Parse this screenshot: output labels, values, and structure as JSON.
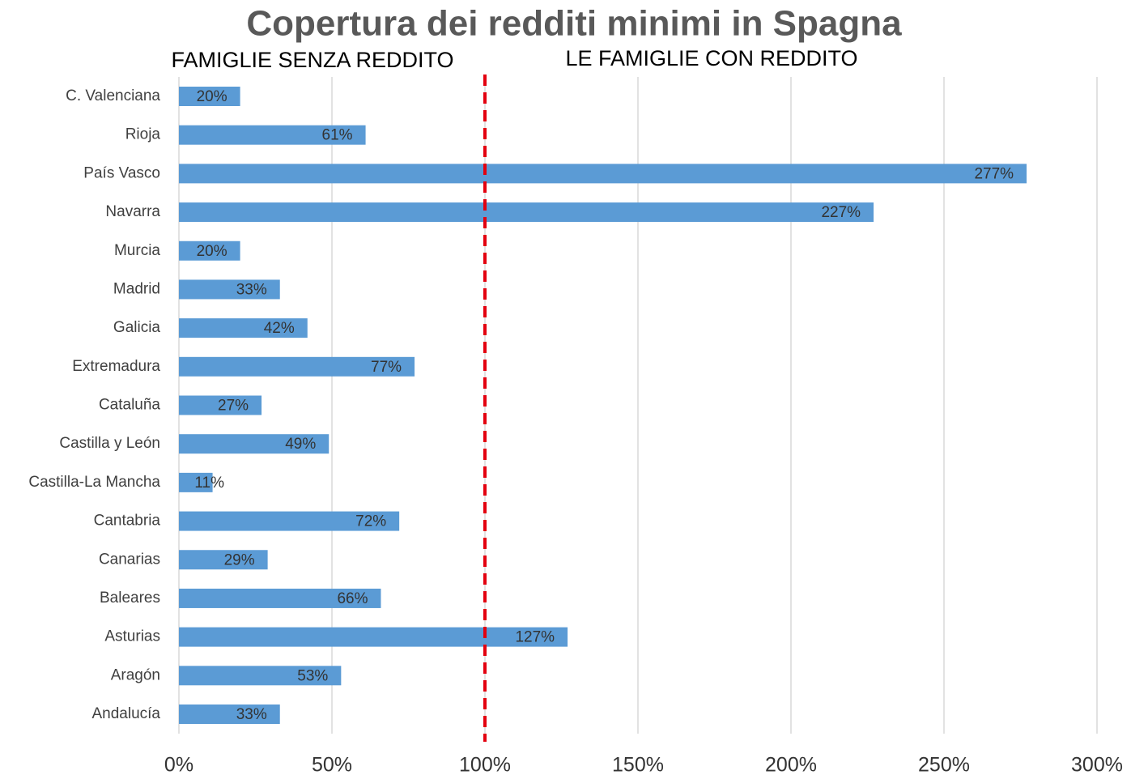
{
  "chart_data": {
    "type": "bar",
    "orientation": "horizontal",
    "title": "Copertura dei redditi minimi in Spagna",
    "annotations": [
      "FAMIGLIE SENZA REDDITO",
      "LE FAMIGLIE CON REDDITO"
    ],
    "categories": [
      "C. Valenciana",
      "Rioja",
      "País Vasco",
      "Navarra",
      "Murcia",
      "Madrid",
      "Galicia",
      "Extremadura",
      "Cataluña",
      "Castilla y León",
      "Castilla-La Mancha",
      "Cantabria",
      "Canarias",
      "Baleares",
      "Asturias",
      "Aragón",
      "Andalucía"
    ],
    "values": [
      20,
      61,
      277,
      227,
      20,
      33,
      42,
      77,
      27,
      49,
      11,
      72,
      29,
      66,
      127,
      53,
      33
    ],
    "value_labels": [
      "20%",
      "61%",
      "277%",
      "227%",
      "20%",
      "33%",
      "42%",
      "77%",
      "27%",
      "49%",
      "11%",
      "72%",
      "29%",
      "66%",
      "127%",
      "53%",
      "33%"
    ],
    "color": "#5b9bd5",
    "xlim": [
      0,
      300
    ],
    "xticks": [
      {
        "value": 0,
        "label": "0%"
      },
      {
        "value": 50,
        "label": "50%"
      },
      {
        "value": 100,
        "label": "100%"
      },
      {
        "value": 150,
        "label": "150%"
      },
      {
        "value": 200,
        "label": "200%"
      },
      {
        "value": 250,
        "label": "250%"
      },
      {
        "value": 300,
        "label": "300%"
      }
    ],
    "grid": true,
    "reference_line": {
      "value": 100,
      "color": "#e3000f"
    }
  }
}
